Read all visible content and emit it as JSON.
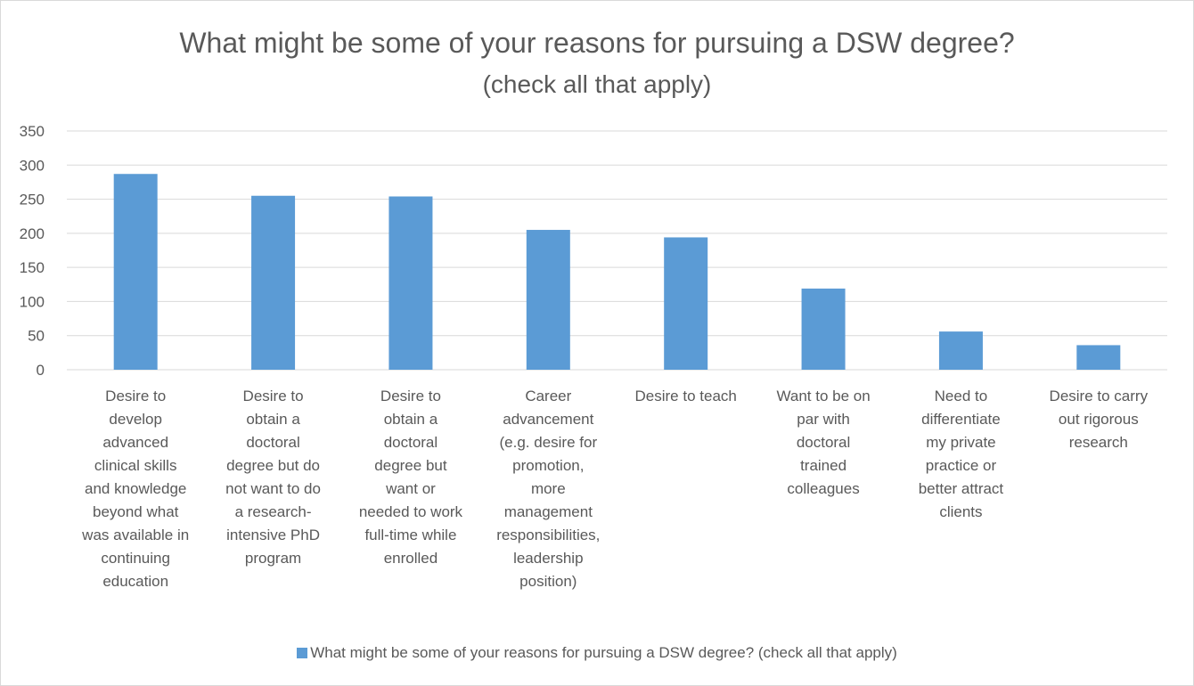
{
  "chart_data": {
    "type": "bar",
    "title": "What might be some of your reasons for pursuing a DSW degree?",
    "subtitle": "(check all that apply)",
    "categories": [
      "Desire to develop advanced clinical skills and knowledge beyond what was available in continuing education",
      "Desire to obtain a doctoral degree but do not want to do a research-intensive PhD program",
      "Desire to obtain a doctoral degree but want or needed to work full-time while enrolled",
      "Career advancement (e.g. desire for promotion, more management responsibilities, leadership position)",
      "Desire to teach",
      "Want to be on par with doctoral trained colleagues",
      "Need to differentiate my private practice or better attract clients",
      "Desire to carry out rigorous research"
    ],
    "category_lines": [
      [
        "Desire to",
        "develop",
        "advanced",
        "clinical skills",
        "and knowledge",
        "beyond what",
        "was available in",
        "continuing",
        "education"
      ],
      [
        "Desire to",
        "obtain a",
        "doctoral",
        "degree but do",
        "not want to do",
        "a research-",
        "intensive PhD",
        "program"
      ],
      [
        "Desire to",
        "obtain a",
        "doctoral",
        "degree but",
        "want or",
        "needed to work",
        "full-time while",
        "enrolled"
      ],
      [
        "Career",
        "advancement",
        "(e.g. desire for",
        "promotion,",
        "more",
        "management",
        "responsibilities,",
        "leadership",
        "position)"
      ],
      [
        "Desire to teach"
      ],
      [
        "Want to be on",
        "par with",
        "doctoral",
        "trained",
        "colleagues"
      ],
      [
        "Need to",
        "differentiate",
        "my private",
        "practice or",
        "better attract",
        "clients"
      ],
      [
        "Desire to carry",
        "out rigorous",
        "research"
      ]
    ],
    "series": [
      {
        "name": "What might be some of your reasons for pursuing a DSW degree? (check all that apply)",
        "values": [
          287,
          255,
          254,
          205,
          194,
          119,
          56,
          36
        ],
        "color": "#5b9bd5"
      }
    ],
    "ylim": [
      0,
      350
    ],
    "yticks": [
      0,
      50,
      100,
      150,
      200,
      250,
      300,
      350
    ],
    "grid": true,
    "legend_position": "bottom",
    "xlabel": "",
    "ylabel": ""
  }
}
